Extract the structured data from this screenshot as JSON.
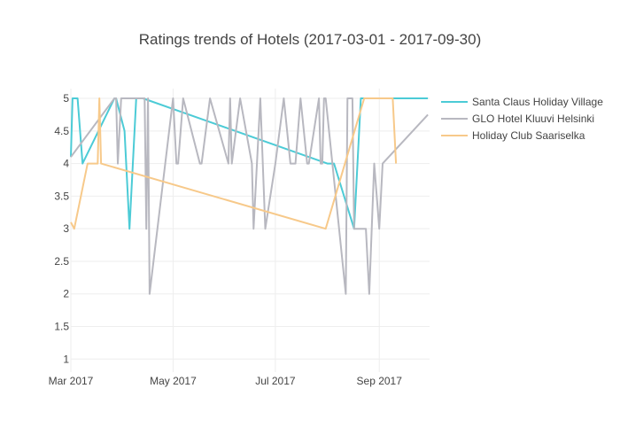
{
  "chart_data": {
    "type": "line",
    "title": "Ratings trends of Hotels (2017-03-01 - 2017-09-30)",
    "xlabel": "",
    "ylabel": "",
    "x_range": [
      "2017-03-01",
      "2017-09-30"
    ],
    "ylim": [
      0.8,
      5.15
    ],
    "y_ticks": [
      1,
      1.5,
      2,
      2.5,
      3,
      3.5,
      4,
      4.5,
      5
    ],
    "y_tick_labels": [
      "1",
      "1.5",
      "2",
      "2.5",
      "3",
      "3.5",
      "4",
      "4.5",
      "5"
    ],
    "x_ticks": [
      "2017-03-01",
      "2017-05-01",
      "2017-07-01",
      "2017-09-01"
    ],
    "x_tick_labels": [
      "Mar 2017",
      "May 2017",
      "Jul 2017",
      "Sep 2017"
    ],
    "grid": true,
    "legend_position": "right",
    "series": [
      {
        "name": "Santa Claus Holiday Village",
        "color": "#4ccbd6",
        "points": [
          [
            "2017-03-01",
            4.1
          ],
          [
            "2017-03-02",
            5
          ],
          [
            "2017-03-05",
            5
          ],
          [
            "2017-03-08",
            4
          ],
          [
            "2017-03-27",
            5
          ],
          [
            "2017-03-28",
            5
          ],
          [
            "2017-04-02",
            4.5
          ],
          [
            "2017-04-05",
            3
          ],
          [
            "2017-04-09",
            5
          ],
          [
            "2017-04-13",
            5
          ],
          [
            "2017-08-01",
            4
          ],
          [
            "2017-08-05",
            4
          ],
          [
            "2017-08-17",
            3
          ],
          [
            "2017-08-21",
            5
          ],
          [
            "2017-09-30",
            5
          ]
        ]
      },
      {
        "name": "GLO Hotel Kluuvi Helsinki",
        "color": "#b8b8c0",
        "points": [
          [
            "2017-03-01",
            4.1
          ],
          [
            "2017-03-27",
            5
          ],
          [
            "2017-03-28",
            5
          ],
          [
            "2017-03-29",
            4
          ],
          [
            "2017-03-31",
            5
          ],
          [
            "2017-04-08",
            5
          ],
          [
            "2017-04-14",
            5
          ],
          [
            "2017-04-15",
            3
          ],
          [
            "2017-04-16",
            5
          ],
          [
            "2017-04-17",
            2
          ],
          [
            "2017-05-01",
            5
          ],
          [
            "2017-05-03",
            4
          ],
          [
            "2017-05-04",
            4
          ],
          [
            "2017-05-07",
            5
          ],
          [
            "2017-05-17",
            4
          ],
          [
            "2017-05-18",
            4
          ],
          [
            "2017-05-23",
            5
          ],
          [
            "2017-06-03",
            4
          ],
          [
            "2017-06-04",
            5
          ],
          [
            "2017-06-05",
            4
          ],
          [
            "2017-06-10",
            5
          ],
          [
            "2017-06-17",
            4
          ],
          [
            "2017-06-18",
            3
          ],
          [
            "2017-06-22",
            5
          ],
          [
            "2017-06-25",
            3
          ],
          [
            "2017-07-01",
            4
          ],
          [
            "2017-07-06",
            5
          ],
          [
            "2017-07-10",
            4
          ],
          [
            "2017-07-13",
            4
          ],
          [
            "2017-07-16",
            5
          ],
          [
            "2017-07-20",
            4
          ],
          [
            "2017-07-21",
            4
          ],
          [
            "2017-07-27",
            5
          ],
          [
            "2017-07-28",
            4
          ],
          [
            "2017-07-29",
            4
          ],
          [
            "2017-07-30",
            5
          ],
          [
            "2017-07-31",
            5
          ],
          [
            "2017-08-12",
            2
          ],
          [
            "2017-08-13",
            5
          ],
          [
            "2017-08-16",
            5
          ],
          [
            "2017-08-17",
            3
          ],
          [
            "2017-08-24",
            3
          ],
          [
            "2017-08-26",
            2
          ],
          [
            "2017-08-29",
            4
          ],
          [
            "2017-09-01",
            3
          ],
          [
            "2017-09-03",
            4
          ],
          [
            "2017-09-30",
            4.75
          ]
        ]
      },
      {
        "name": "Holiday Club Saariselka",
        "color": "#f7c98a",
        "points": [
          [
            "2017-03-01",
            3.1
          ],
          [
            "2017-03-03",
            3
          ],
          [
            "2017-03-11",
            4
          ],
          [
            "2017-03-17",
            4
          ],
          [
            "2017-03-18",
            5
          ],
          [
            "2017-03-19",
            4
          ],
          [
            "2017-07-31",
            3
          ],
          [
            "2017-08-23",
            5
          ],
          [
            "2017-09-03",
            5
          ],
          [
            "2017-09-09",
            5
          ],
          [
            "2017-09-11",
            4
          ]
        ]
      }
    ]
  }
}
